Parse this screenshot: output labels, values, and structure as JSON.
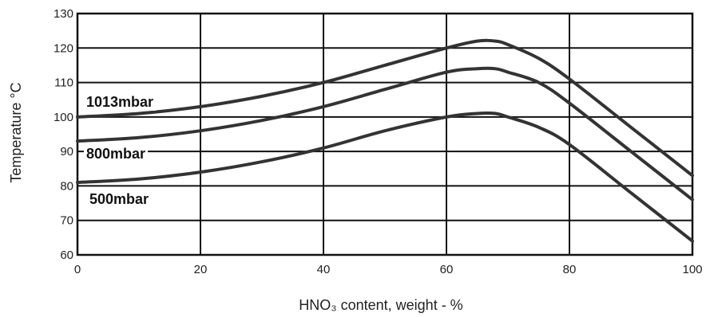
{
  "chart_data": {
    "type": "line",
    "xlabel": "HNO₃ content, weight - %",
    "ylabel": "Temperature °C",
    "xlim": [
      0,
      100
    ],
    "ylim": [
      60,
      130
    ],
    "x_ticks": [
      "0",
      "20",
      "40",
      "60",
      "80",
      "100"
    ],
    "y_ticks": [
      "60",
      "70",
      "80",
      "90",
      "100",
      "110",
      "120",
      "130"
    ],
    "grid": true,
    "series": [
      {
        "name": "1013mbar",
        "x": [
          0,
          10,
          20,
          30,
          40,
          50,
          60,
          65,
          68,
          70,
          75,
          80,
          90,
          100
        ],
        "y": [
          100,
          101,
          103,
          106,
          110,
          115,
          120,
          122,
          122,
          121,
          117,
          111,
          97,
          83
        ]
      },
      {
        "name": "800mbar",
        "x": [
          0,
          10,
          20,
          30,
          40,
          50,
          60,
          65,
          68,
          70,
          75,
          80,
          90,
          100
        ],
        "y": [
          93,
          94,
          96,
          99,
          103,
          108,
          113,
          114,
          114,
          113,
          110,
          104,
          90,
          76
        ]
      },
      {
        "name": "500mbar",
        "x": [
          0,
          10,
          20,
          30,
          40,
          50,
          60,
          65,
          68,
          70,
          75,
          80,
          90,
          100
        ],
        "y": [
          81,
          82,
          84,
          87,
          91,
          96,
          100,
          101,
          101,
          100,
          97,
          92,
          78,
          64
        ]
      }
    ]
  },
  "colors": {
    "curve": "#333333",
    "grid": "#111111"
  }
}
